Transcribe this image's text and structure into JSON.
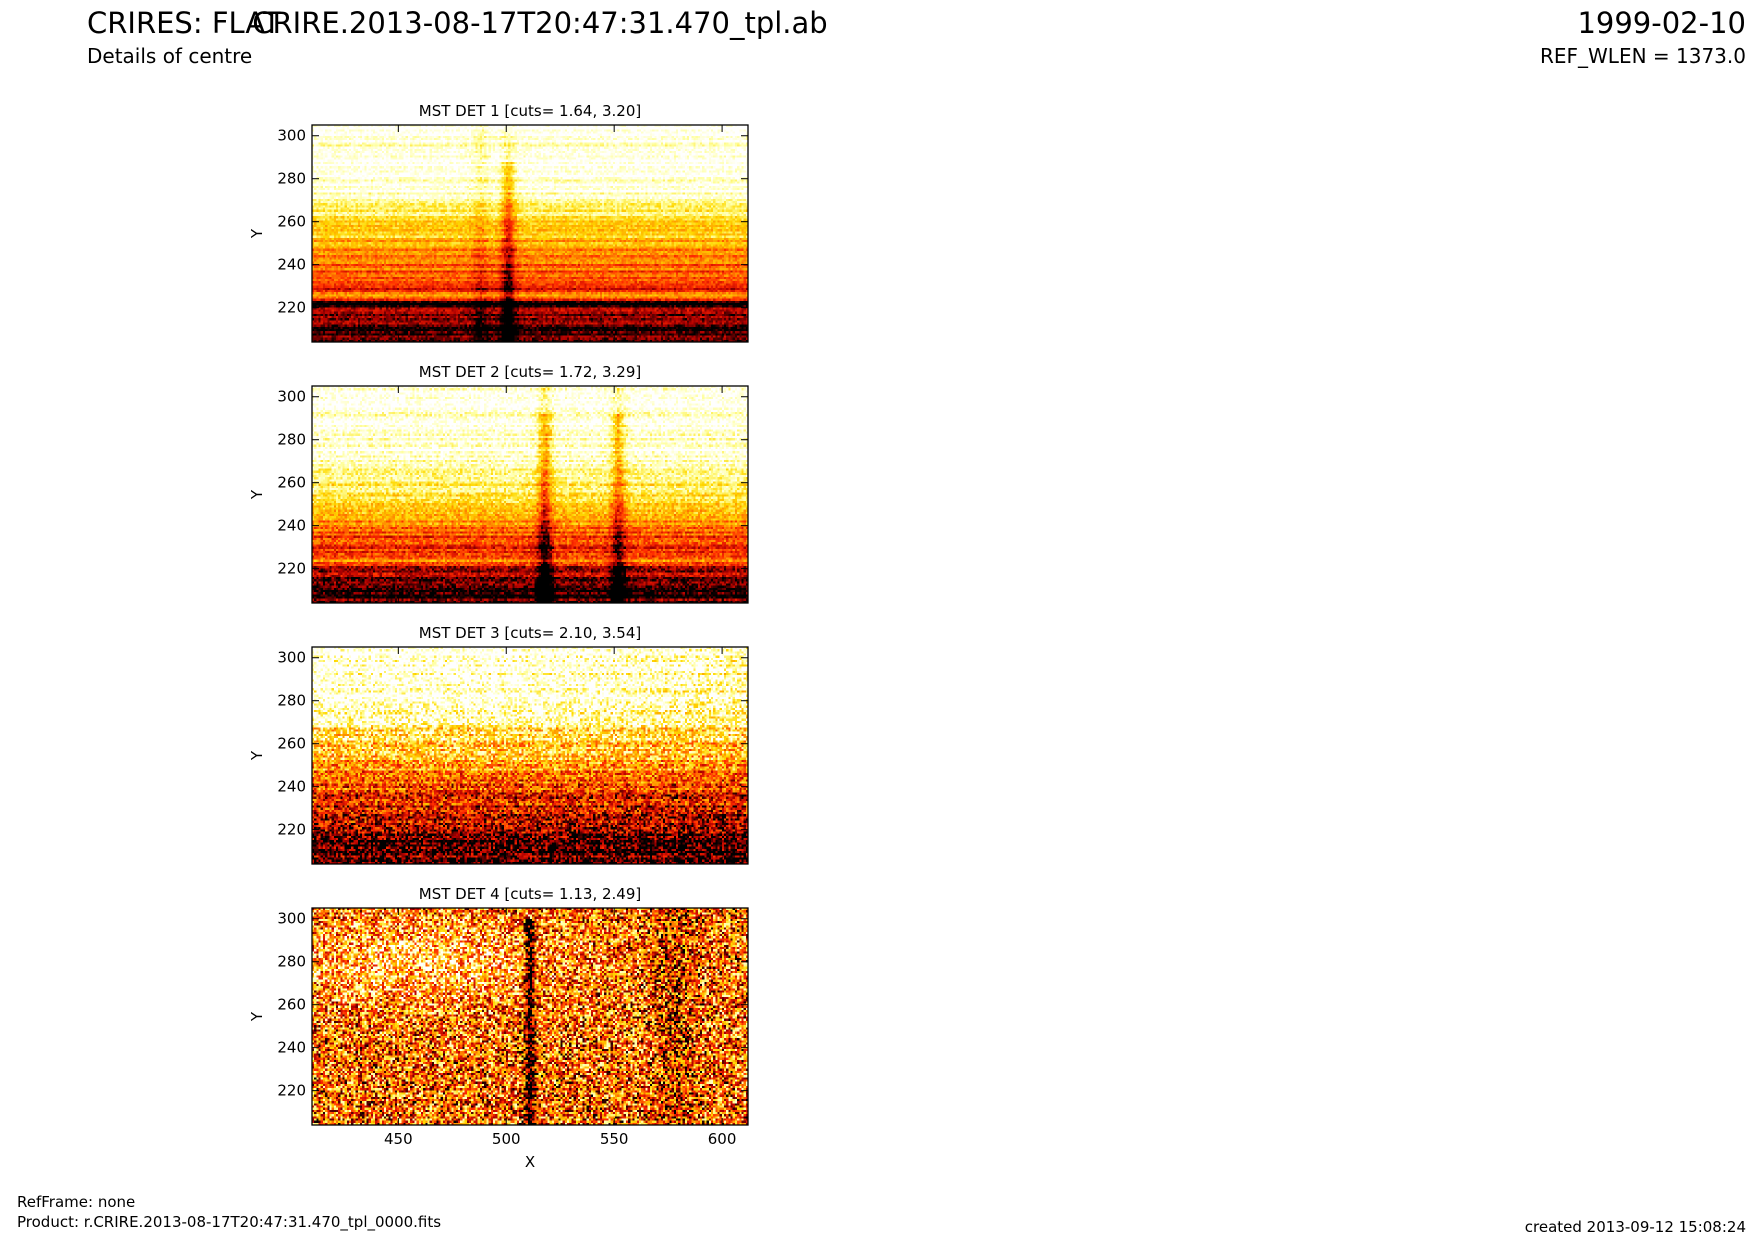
{
  "header": {
    "instrument_title": "CRIRES: FLAT",
    "subtitle": "Details of centre",
    "file_title": "CRIRE.2013-08-17T20:47:31.470_tpl.ab",
    "date": "1999-02-10",
    "ref_wlen": "REF_WLEN = 1373.0"
  },
  "footer": {
    "ref_frame": "RefFrame: none",
    "product": "Product: r.CRIRE.2013-08-17T20:47:31.470_tpl_0000.fits",
    "created": "created 2013-09-12 15:08:24"
  },
  "colors": {
    "colormap": "hot",
    "colormap_stops": [
      "#000000",
      "#b00000",
      "#ff2a00",
      "#ff8c00",
      "#ffd800",
      "#ffffa0",
      "#ffffff"
    ]
  },
  "chart_data": [
    {
      "type": "heatmap",
      "title": "MST DET 1 [cuts= 1.64, 3.20]",
      "xlabel": "",
      "ylabel": "Y",
      "xlim": [
        410,
        612
      ],
      "ylim": [
        204,
        305
      ],
      "xticks": [],
      "yticks": [
        220,
        240,
        260,
        280,
        300
      ],
      "cuts": [
        1.64,
        3.2
      ],
      "columns": 200,
      "rows": 100
    },
    {
      "type": "heatmap",
      "title": "MST DET 2 [cuts= 1.72, 3.29]",
      "xlabel": "",
      "ylabel": "Y",
      "xlim": [
        410,
        612
      ],
      "ylim": [
        204,
        305
      ],
      "xticks": [],
      "yticks": [
        220,
        240,
        260,
        280,
        300
      ],
      "cuts": [
        1.72,
        3.29
      ],
      "columns": 200,
      "rows": 100
    },
    {
      "type": "heatmap",
      "title": "MST DET 3 [cuts= 2.10, 3.54]",
      "xlabel": "",
      "ylabel": "Y",
      "xlim": [
        410,
        612
      ],
      "ylim": [
        204,
        305
      ],
      "xticks": [],
      "yticks": [
        220,
        240,
        260,
        280,
        300
      ],
      "cuts": [
        2.1,
        3.54
      ],
      "columns": 200,
      "rows": 100
    },
    {
      "type": "heatmap",
      "title": "MST DET 4 [cuts= 1.13, 2.49]",
      "xlabel": "X",
      "ylabel": "Y",
      "xlim": [
        410,
        612
      ],
      "ylim": [
        204,
        305
      ],
      "xticks": [
        450,
        500,
        550,
        600
      ],
      "yticks": [
        220,
        240,
        260,
        280,
        300
      ],
      "cuts": [
        1.13,
        2.49
      ],
      "columns": 200,
      "rows": 100
    }
  ]
}
